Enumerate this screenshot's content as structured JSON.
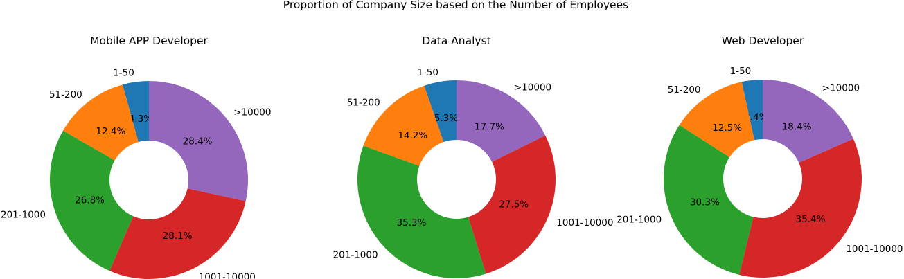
{
  "suptitle": "Proportion of Company Size based on the Number of Employees",
  "chart_data": [
    {
      "type": "pie",
      "variant": "donut",
      "title": "Mobile APP Developer",
      "categories": [
        "1-50",
        "51-200",
        "201-1000",
        "1001-10000",
        ">10000"
      ],
      "values": [
        4.3,
        12.4,
        26.8,
        28.1,
        28.4
      ],
      "labels": [
        "4.3%",
        "12.4%",
        "26.8%",
        "28.1%",
        "28.4%"
      ]
    },
    {
      "type": "pie",
      "variant": "donut",
      "title": "Data Analyst",
      "categories": [
        "1-50",
        "51-200",
        "201-1000",
        "1001-10000",
        ">10000"
      ],
      "values": [
        5.3,
        14.2,
        35.3,
        27.5,
        17.7
      ],
      "labels": [
        "5.3%",
        "14.2%",
        "35.3%",
        "27.5%",
        "17.7%"
      ]
    },
    {
      "type": "pie",
      "variant": "donut",
      "title": "Web Developer",
      "categories": [
        "1-50",
        "51-200",
        "201-1000",
        "1001-10000",
        ">10000"
      ],
      "values": [
        3.4,
        12.5,
        30.3,
        35.4,
        18.4
      ],
      "labels": [
        "3.4%",
        "12.5%",
        "30.3%",
        "35.4%",
        "18.4%"
      ]
    }
  ],
  "colors": [
    "#1f77b4",
    "#ff7f0e",
    "#2ca02c",
    "#d62728",
    "#9467bd"
  ]
}
